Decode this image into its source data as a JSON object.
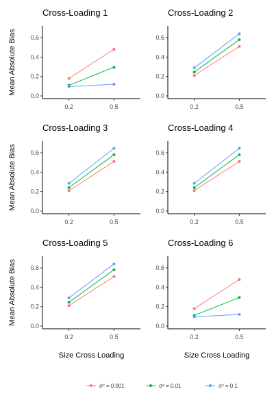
{
  "chart_data": {
    "type": "line",
    "x": [
      "0.2",
      "0.5"
    ],
    "xlabel": "Size Cross Loading",
    "ylabel": "Mean Absolute Bias",
    "ylim": [
      0,
      0.72
    ],
    "yticks": [
      "0.0",
      "0.2",
      "0.4",
      "0.6"
    ],
    "legend_position": "bottom",
    "series_meta": [
      {
        "name": "σ² = 0.001",
        "color": "#F8766D"
      },
      {
        "name": "σ² = 0.01",
        "color": "#00BA38"
      },
      {
        "name": "σ² = 0.1",
        "color": "#619CFF"
      }
    ],
    "panels": [
      {
        "title": "Cross-Loading 1",
        "series": [
          {
            "name": "σ² = 0.001",
            "values": [
              0.18,
              0.48
            ]
          },
          {
            "name": "σ² = 0.01",
            "values": [
              0.11,
              0.295
            ]
          },
          {
            "name": "σ² = 0.1",
            "values": [
              0.095,
              0.12
            ]
          }
        ]
      },
      {
        "title": "Cross-Loading 2",
        "series": [
          {
            "name": "σ² = 0.001",
            "values": [
              0.21,
              0.51
            ]
          },
          {
            "name": "σ² = 0.01",
            "values": [
              0.245,
              0.58
            ]
          },
          {
            "name": "σ² = 0.1",
            "values": [
              0.29,
              0.64
            ]
          }
        ]
      },
      {
        "title": "Cross-Loading 3",
        "series": [
          {
            "name": "σ² = 0.001",
            "values": [
              0.21,
              0.51
            ]
          },
          {
            "name": "σ² = 0.01",
            "values": [
              0.24,
              0.58
            ]
          },
          {
            "name": "σ² = 0.1",
            "values": [
              0.285,
              0.645
            ]
          }
        ]
      },
      {
        "title": "Cross-Loading 4",
        "series": [
          {
            "name": "σ² = 0.001",
            "values": [
              0.21,
              0.51
            ]
          },
          {
            "name": "σ² = 0.01",
            "values": [
              0.24,
              0.58
            ]
          },
          {
            "name": "σ² = 0.1",
            "values": [
              0.285,
              0.645
            ]
          }
        ]
      },
      {
        "title": "Cross-Loading 5",
        "series": [
          {
            "name": "σ² = 0.001",
            "values": [
              0.21,
              0.51
            ]
          },
          {
            "name": "σ² = 0.01",
            "values": [
              0.245,
              0.58
            ]
          },
          {
            "name": "σ² = 0.1",
            "values": [
              0.29,
              0.64
            ]
          }
        ]
      },
      {
        "title": "Cross-Loading 6",
        "series": [
          {
            "name": "σ² = 0.001",
            "values": [
              0.18,
              0.48
            ]
          },
          {
            "name": "σ² = 0.01",
            "values": [
              0.11,
              0.295
            ]
          },
          {
            "name": "σ² = 0.1",
            "values": [
              0.095,
              0.12
            ]
          }
        ]
      }
    ]
  }
}
